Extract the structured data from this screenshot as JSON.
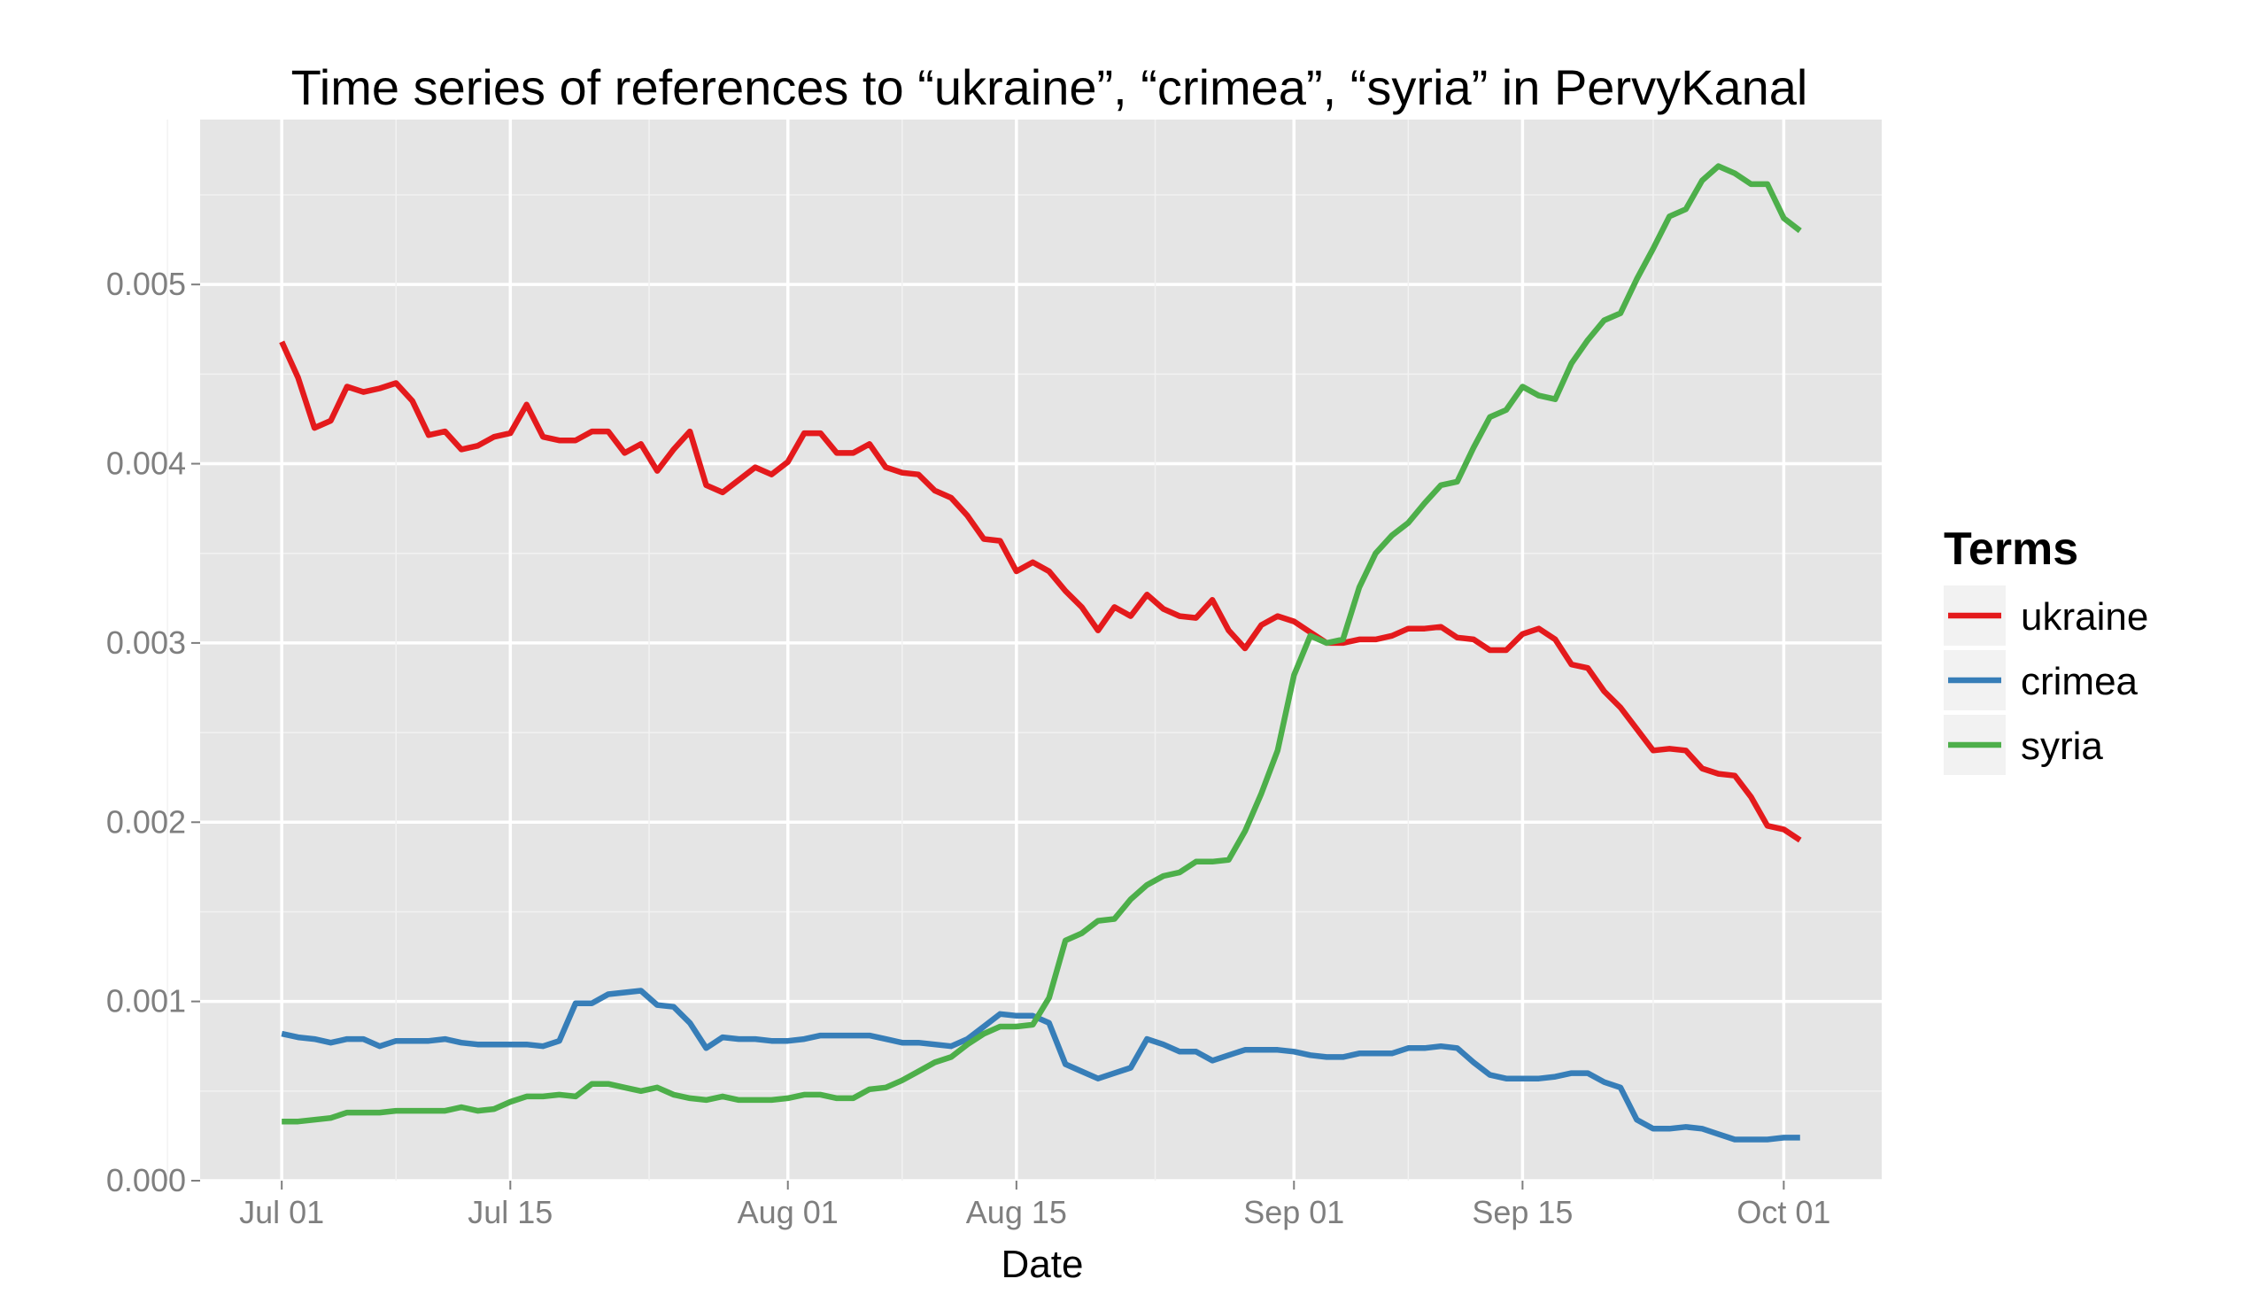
{
  "chart_data": {
    "type": "line",
    "title": "Time series of references to “ukraine”, “crimea”, “syria” in PervyKanal",
    "xlabel": "Date",
    "ylabel": "",
    "x_ticks": [
      "Jul 01",
      "Jul 15",
      "Aug 01",
      "Aug 15",
      "Sep 01",
      "Sep 15",
      "Oct 01"
    ],
    "x_tick_days": [
      0,
      14,
      31,
      45,
      62,
      76,
      92
    ],
    "xlim_days": [
      -5,
      98
    ],
    "y_ticks": [
      "0.000",
      "0.001",
      "0.002",
      "0.003",
      "0.004",
      "0.005"
    ],
    "ylim": [
      0,
      0.00592
    ],
    "grid": true,
    "legend": {
      "title": "Terms",
      "position": "right"
    },
    "x_start_date": "Jul 01",
    "series": [
      {
        "name": "ukraine",
        "color": "#e41a1c",
        "x": [
          0,
          1,
          2,
          3,
          4,
          5,
          6,
          7,
          8,
          9,
          10,
          11,
          12,
          13,
          14,
          15,
          16,
          17,
          18,
          19,
          20,
          21,
          22,
          23,
          24,
          25,
          26,
          27,
          28,
          29,
          30,
          31,
          32,
          33,
          34,
          35,
          36,
          37,
          38,
          39,
          40,
          41,
          42,
          43,
          44,
          45,
          46,
          47,
          48,
          49,
          50,
          51,
          52,
          53,
          54,
          55,
          56,
          57,
          58,
          59,
          60,
          61,
          62,
          63,
          64,
          65,
          66,
          67,
          68,
          69,
          70,
          71,
          72,
          73,
          74,
          75,
          76,
          77,
          78,
          79,
          80,
          81,
          82,
          83,
          84,
          85,
          86,
          87,
          88,
          89,
          90,
          91,
          92,
          93
        ],
        "values": [
          0.00468,
          0.00448,
          0.0042,
          0.00424,
          0.00443,
          0.0044,
          0.00442,
          0.00445,
          0.00435,
          0.00416,
          0.00418,
          0.00408,
          0.0041,
          0.00415,
          0.00417,
          0.00433,
          0.00415,
          0.00413,
          0.00413,
          0.00418,
          0.00418,
          0.00406,
          0.00411,
          0.00396,
          0.00408,
          0.00418,
          0.00388,
          0.00384,
          0.00391,
          0.00398,
          0.00394,
          0.00401,
          0.00417,
          0.00417,
          0.00406,
          0.00406,
          0.00411,
          0.00398,
          0.00395,
          0.00394,
          0.00385,
          0.00381,
          0.00371,
          0.00358,
          0.00357,
          0.0034,
          0.00345,
          0.0034,
          0.00329,
          0.0032,
          0.00307,
          0.0032,
          0.00315,
          0.00327,
          0.00319,
          0.00315,
          0.00314,
          0.00324,
          0.00307,
          0.00297,
          0.0031,
          0.00315,
          0.00312,
          0.00306,
          0.003,
          0.003,
          0.00302,
          0.00302,
          0.00304,
          0.00308,
          0.00308,
          0.00309,
          0.00303,
          0.00302,
          0.00296,
          0.00296,
          0.00305,
          0.00308,
          0.00302,
          0.00288,
          0.00286,
          0.00273,
          0.00264,
          0.00252,
          0.0024,
          0.00241,
          0.0024,
          0.0023,
          0.00227,
          0.00226,
          0.00214,
          0.00198,
          0.00196,
          0.0019
        ]
      },
      {
        "name": "crimea",
        "color": "#377eb8",
        "x": [
          0,
          1,
          2,
          3,
          4,
          5,
          6,
          7,
          8,
          9,
          10,
          11,
          12,
          13,
          14,
          15,
          16,
          17,
          18,
          19,
          20,
          21,
          22,
          23,
          24,
          25,
          26,
          27,
          28,
          29,
          30,
          31,
          32,
          33,
          34,
          35,
          36,
          37,
          38,
          39,
          40,
          41,
          42,
          43,
          44,
          45,
          46,
          47,
          48,
          49,
          50,
          51,
          52,
          53,
          54,
          55,
          56,
          57,
          58,
          59,
          60,
          61,
          62,
          63,
          64,
          65,
          66,
          67,
          68,
          69,
          70,
          71,
          72,
          73,
          74,
          75,
          76,
          77,
          78,
          79,
          80,
          81,
          82,
          83,
          84,
          85,
          86,
          87,
          88,
          89,
          90,
          91,
          92,
          93
        ],
        "values": [
          0.00082,
          0.0008,
          0.00079,
          0.00077,
          0.00079,
          0.00079,
          0.00075,
          0.00078,
          0.00078,
          0.00078,
          0.00079,
          0.00077,
          0.00076,
          0.00076,
          0.00076,
          0.00076,
          0.00075,
          0.00078,
          0.00099,
          0.00099,
          0.00104,
          0.00105,
          0.00106,
          0.00098,
          0.00097,
          0.00088,
          0.00074,
          0.0008,
          0.00079,
          0.00079,
          0.00078,
          0.00078,
          0.00079,
          0.00081,
          0.00081,
          0.00081,
          0.00081,
          0.00079,
          0.00077,
          0.00077,
          0.00076,
          0.00075,
          0.00079,
          0.00086,
          0.00093,
          0.00092,
          0.00092,
          0.00088,
          0.00065,
          0.00061,
          0.00057,
          0.0006,
          0.00063,
          0.00079,
          0.00076,
          0.00072,
          0.00072,
          0.00067,
          0.0007,
          0.00073,
          0.00073,
          0.00073,
          0.00072,
          0.0007,
          0.00069,
          0.00069,
          0.00071,
          0.00071,
          0.00071,
          0.00074,
          0.00074,
          0.00075,
          0.00074,
          0.00066,
          0.00059,
          0.00057,
          0.00057,
          0.00057,
          0.00058,
          0.0006,
          0.0006,
          0.00055,
          0.00052,
          0.00034,
          0.00029,
          0.00029,
          0.0003,
          0.00029,
          0.00026,
          0.00023,
          0.00023,
          0.00023,
          0.00024,
          0.00024
        ]
      },
      {
        "name": "syria",
        "color": "#4daf4a",
        "x": [
          0,
          1,
          2,
          3,
          4,
          5,
          6,
          7,
          8,
          9,
          10,
          11,
          12,
          13,
          14,
          15,
          16,
          17,
          18,
          19,
          20,
          21,
          22,
          23,
          24,
          25,
          26,
          27,
          28,
          29,
          30,
          31,
          32,
          33,
          34,
          35,
          36,
          37,
          38,
          39,
          40,
          41,
          42,
          43,
          44,
          45,
          46,
          47,
          48,
          49,
          50,
          51,
          52,
          53,
          54,
          55,
          56,
          57,
          58,
          59,
          60,
          61,
          62,
          63,
          64,
          65,
          66,
          67,
          68,
          69,
          70,
          71,
          72,
          73,
          74,
          75,
          76,
          77,
          78,
          79,
          80,
          81,
          82,
          83,
          84,
          85,
          86,
          87,
          88,
          89,
          90,
          91,
          92,
          93
        ],
        "values": [
          0.00033,
          0.00033,
          0.00034,
          0.00035,
          0.00038,
          0.00038,
          0.00038,
          0.00039,
          0.00039,
          0.00039,
          0.00039,
          0.00041,
          0.00039,
          0.0004,
          0.00044,
          0.00047,
          0.00047,
          0.00048,
          0.00047,
          0.00054,
          0.00054,
          0.00052,
          0.0005,
          0.00052,
          0.00048,
          0.00046,
          0.00045,
          0.00047,
          0.00045,
          0.00045,
          0.00045,
          0.00046,
          0.00048,
          0.00048,
          0.00046,
          0.00046,
          0.00051,
          0.00052,
          0.00056,
          0.00061,
          0.00066,
          0.00069,
          0.00076,
          0.00082,
          0.00086,
          0.00086,
          0.00087,
          0.00102,
          0.00134,
          0.00138,
          0.00145,
          0.00146,
          0.00157,
          0.00165,
          0.0017,
          0.00172,
          0.00178,
          0.00178,
          0.00179,
          0.00195,
          0.00216,
          0.0024,
          0.00282,
          0.00304,
          0.003,
          0.00302,
          0.00331,
          0.0035,
          0.0036,
          0.00367,
          0.00378,
          0.00388,
          0.0039,
          0.00409,
          0.00426,
          0.0043,
          0.00443,
          0.00438,
          0.00436,
          0.00456,
          0.00469,
          0.0048,
          0.00484,
          0.00503,
          0.0052,
          0.00538,
          0.00542,
          0.00558,
          0.00566,
          0.00562,
          0.00556,
          0.00556,
          0.00537,
          0.0053
        ]
      }
    ]
  }
}
